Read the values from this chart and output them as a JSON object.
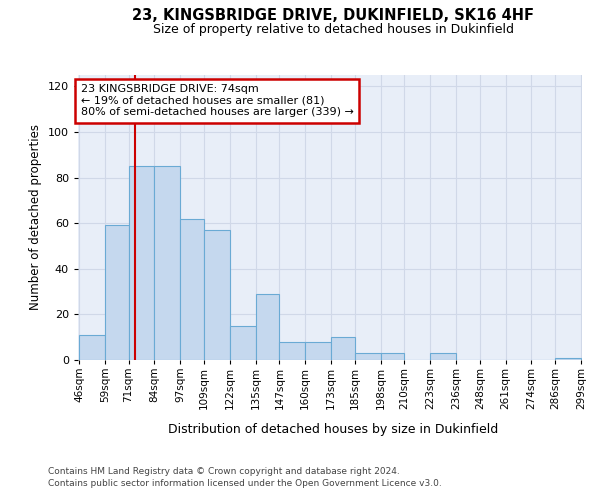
{
  "title": "23, KINGSBRIDGE DRIVE, DUKINFIELD, SK16 4HF",
  "subtitle": "Size of property relative to detached houses in Dukinfield",
  "xlabel": "Distribution of detached houses by size in Dukinfield",
  "ylabel": "Number of detached properties",
  "bar_values": [
    11,
    59,
    85,
    85,
    62,
    57,
    15,
    29,
    8,
    8,
    10,
    3,
    3,
    0,
    3,
    0,
    0,
    0,
    0,
    1
  ],
  "bin_edges": [
    46,
    59,
    71,
    84,
    97,
    109,
    122,
    135,
    147,
    160,
    173,
    185,
    198,
    210,
    223,
    236,
    248,
    261,
    274,
    286,
    299
  ],
  "tick_labels": [
    "46sqm",
    "59sqm",
    "71sqm",
    "84sqm",
    "97sqm",
    "109sqm",
    "122sqm",
    "135sqm",
    "147sqm",
    "160sqm",
    "173sqm",
    "185sqm",
    "198sqm",
    "210sqm",
    "223sqm",
    "236sqm",
    "248sqm",
    "261sqm",
    "274sqm",
    "286sqm",
    "299sqm"
  ],
  "bar_color": "#c5d8ee",
  "bar_edge_color": "#6aaad4",
  "grid_color": "#d0d8e8",
  "background_color": "#e8eef8",
  "annotation_line1": "23 KINGSBRIDGE DRIVE: 74sqm",
  "annotation_line2": "← 19% of detached houses are smaller (81)",
  "annotation_line3": "80% of semi-detached houses are larger (339) →",
  "annotation_box_facecolor": "white",
  "annotation_box_edgecolor": "#cc0000",
  "vline_x": 74,
  "vline_color": "#cc0000",
  "ylim": [
    0,
    125
  ],
  "yticks": [
    0,
    20,
    40,
    60,
    80,
    100,
    120
  ],
  "footnote1": "Contains HM Land Registry data © Crown copyright and database right 2024.",
  "footnote2": "Contains public sector information licensed under the Open Government Licence v3.0."
}
